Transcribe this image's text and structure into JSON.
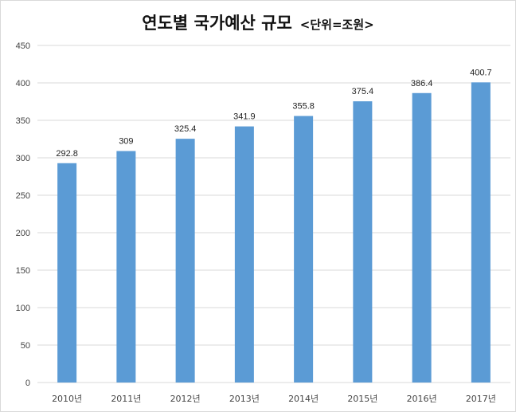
{
  "chart_data": {
    "type": "bar",
    "title": "연도별 국가예산 규모",
    "subtitle": "<단위=조원>",
    "categories": [
      "2010년",
      "2011년",
      "2012년",
      "2013년",
      "2014년",
      "2015년",
      "2016년",
      "2017년"
    ],
    "values": [
      292.8,
      309,
      325.4,
      341.9,
      355.8,
      375.4,
      386.4,
      400.7
    ],
    "value_labels": [
      "292.8",
      "309",
      "325.4",
      "341.9",
      "355.8",
      "375.4",
      "386.4",
      "400.7"
    ],
    "y_ticks": [
      "0",
      "50",
      "100",
      "150",
      "200",
      "250",
      "300",
      "350",
      "400",
      "450"
    ],
    "ylim": [
      0,
      450
    ],
    "grid": true,
    "legend": "none",
    "bar_color": "#5b9bd5",
    "grid_color": "#d9d9d9"
  }
}
